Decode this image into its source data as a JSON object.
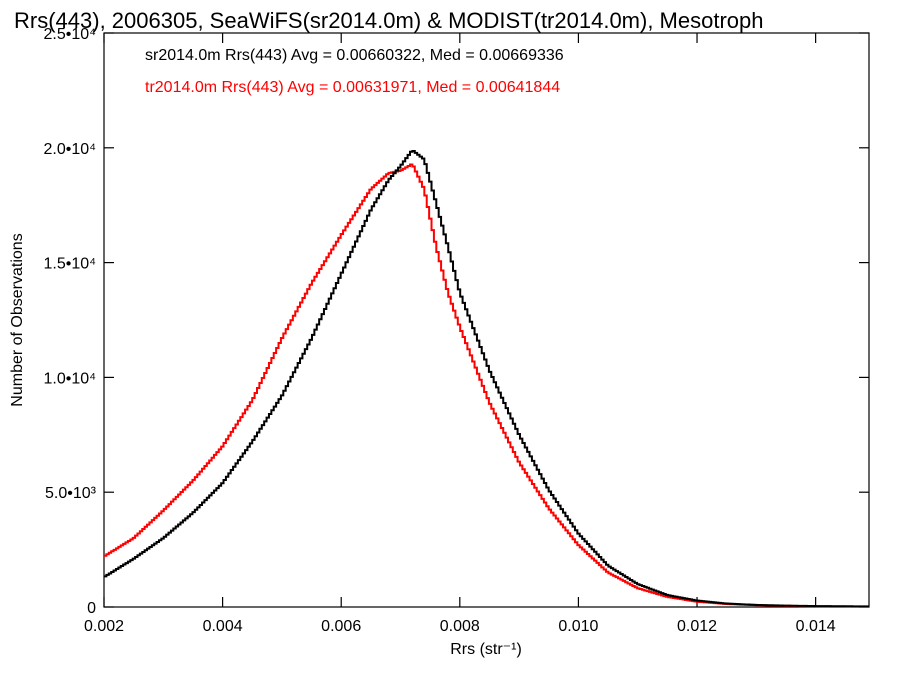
{
  "chart_data": {
    "type": "line",
    "title": "Rrs(443), 2006305, SeaWiFS(sr2014.0m) & MODIST(tr2014.0m), Mesotroph",
    "xlabel": "Rrs (str⁻¹)",
    "ylabel": "Number of Observations",
    "xlim": [
      0.002,
      0.0149
    ],
    "ylim": [
      0,
      25000
    ],
    "x_ticks": [
      {
        "value": 0.002,
        "label": "0.002"
      },
      {
        "value": 0.004,
        "label": "0.004"
      },
      {
        "value": 0.006,
        "label": "0.006"
      },
      {
        "value": 0.008,
        "label": "0.008"
      },
      {
        "value": 0.01,
        "label": "0.010"
      },
      {
        "value": 0.012,
        "label": "0.012"
      },
      {
        "value": 0.014,
        "label": "0.014"
      }
    ],
    "y_ticks": [
      {
        "value": 0,
        "label": "0"
      },
      {
        "value": 5000,
        "label": "5.0•10³"
      },
      {
        "value": 10000,
        "label": "1.0•10⁴"
      },
      {
        "value": 15000,
        "label": "1.5•10⁴"
      },
      {
        "value": 20000,
        "label": "2.0•10⁴"
      },
      {
        "value": 25000,
        "label": "2.5•10⁴"
      }
    ],
    "annotations": [
      {
        "text": "sr2014.0m Rrs(443) Avg = 0.00660322, Med = 0.00669336",
        "color": "#000000"
      },
      {
        "text": "tr2014.0m Rrs(443) Avg = 0.00631971, Med = 0.00641844",
        "color": "#ff0000"
      }
    ],
    "series": [
      {
        "name": "sr2014.0m",
        "color": "#000000",
        "x": [
          0.002,
          0.0025,
          0.003,
          0.0035,
          0.004,
          0.0045,
          0.005,
          0.0055,
          0.006,
          0.0065,
          0.0068,
          0.007,
          0.0072,
          0.0074,
          0.0076,
          0.0078,
          0.008,
          0.0085,
          0.009,
          0.0095,
          0.01,
          0.0105,
          0.011,
          0.0115,
          0.012,
          0.0125,
          0.013,
          0.0135,
          0.014,
          0.0149
        ],
        "y": [
          1300,
          2100,
          3000,
          4100,
          5400,
          7200,
          9200,
          11700,
          14500,
          17300,
          18600,
          19200,
          19900,
          19500,
          17600,
          15700,
          13700,
          10300,
          7500,
          5100,
          3200,
          1800,
          1000,
          520,
          280,
          150,
          90,
          60,
          40,
          25
        ]
      },
      {
        "name": "tr2014.0m",
        "color": "#ff0000",
        "x": [
          0.002,
          0.0025,
          0.003,
          0.0035,
          0.004,
          0.0045,
          0.005,
          0.0055,
          0.006,
          0.0065,
          0.0068,
          0.007,
          0.0072,
          0.0074,
          0.0076,
          0.0078,
          0.008,
          0.0085,
          0.009,
          0.0095,
          0.01,
          0.0105,
          0.011,
          0.0115,
          0.012,
          0.0125,
          0.013,
          0.0135,
          0.014,
          0.0149
        ],
        "y": [
          2200,
          3000,
          4200,
          5500,
          7000,
          9000,
          11700,
          14100,
          16200,
          18200,
          18900,
          19000,
          19300,
          18200,
          15700,
          13700,
          12200,
          8900,
          6300,
          4300,
          2700,
          1500,
          820,
          440,
          230,
          130,
          80,
          50,
          30,
          20
        ]
      }
    ]
  }
}
